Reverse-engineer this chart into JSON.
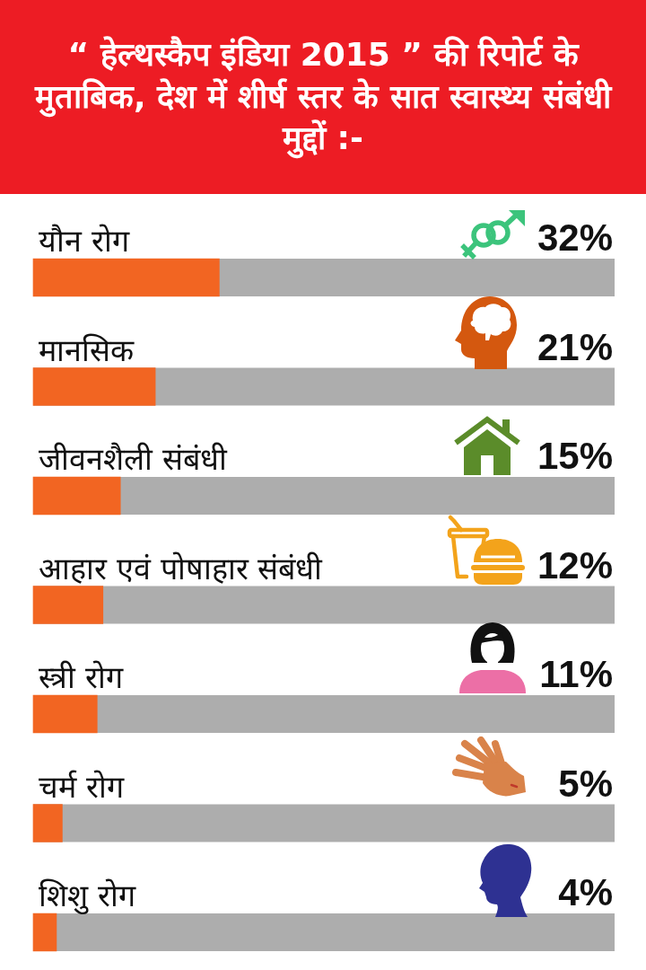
{
  "chart_data": {
    "type": "bar",
    "orientation": "horizontal",
    "title": "“ हेल्थस्कैप इंडिया 2015 ” की रिपोर्ट के मुताबिक, देश में शीर्ष स्तर के सात स्वास्थ्य संबंधी मुद्दों :-",
    "categories": [
      "यौन रोग",
      "मानसिक",
      "जीवनशैली संबंधी",
      "आहार एवं पोषाहार संबंधी",
      "स्त्री रोग",
      "चर्म रोग",
      "शिशु रोग"
    ],
    "values": [
      32,
      21,
      15,
      12,
      11,
      5,
      4
    ],
    "value_labels": [
      "32%",
      "21%",
      "15%",
      "12%",
      "11%",
      "5%",
      "4%"
    ],
    "color": "#f26522",
    "xlim": [
      0,
      100
    ],
    "tick_labels": "y"
  }
}
